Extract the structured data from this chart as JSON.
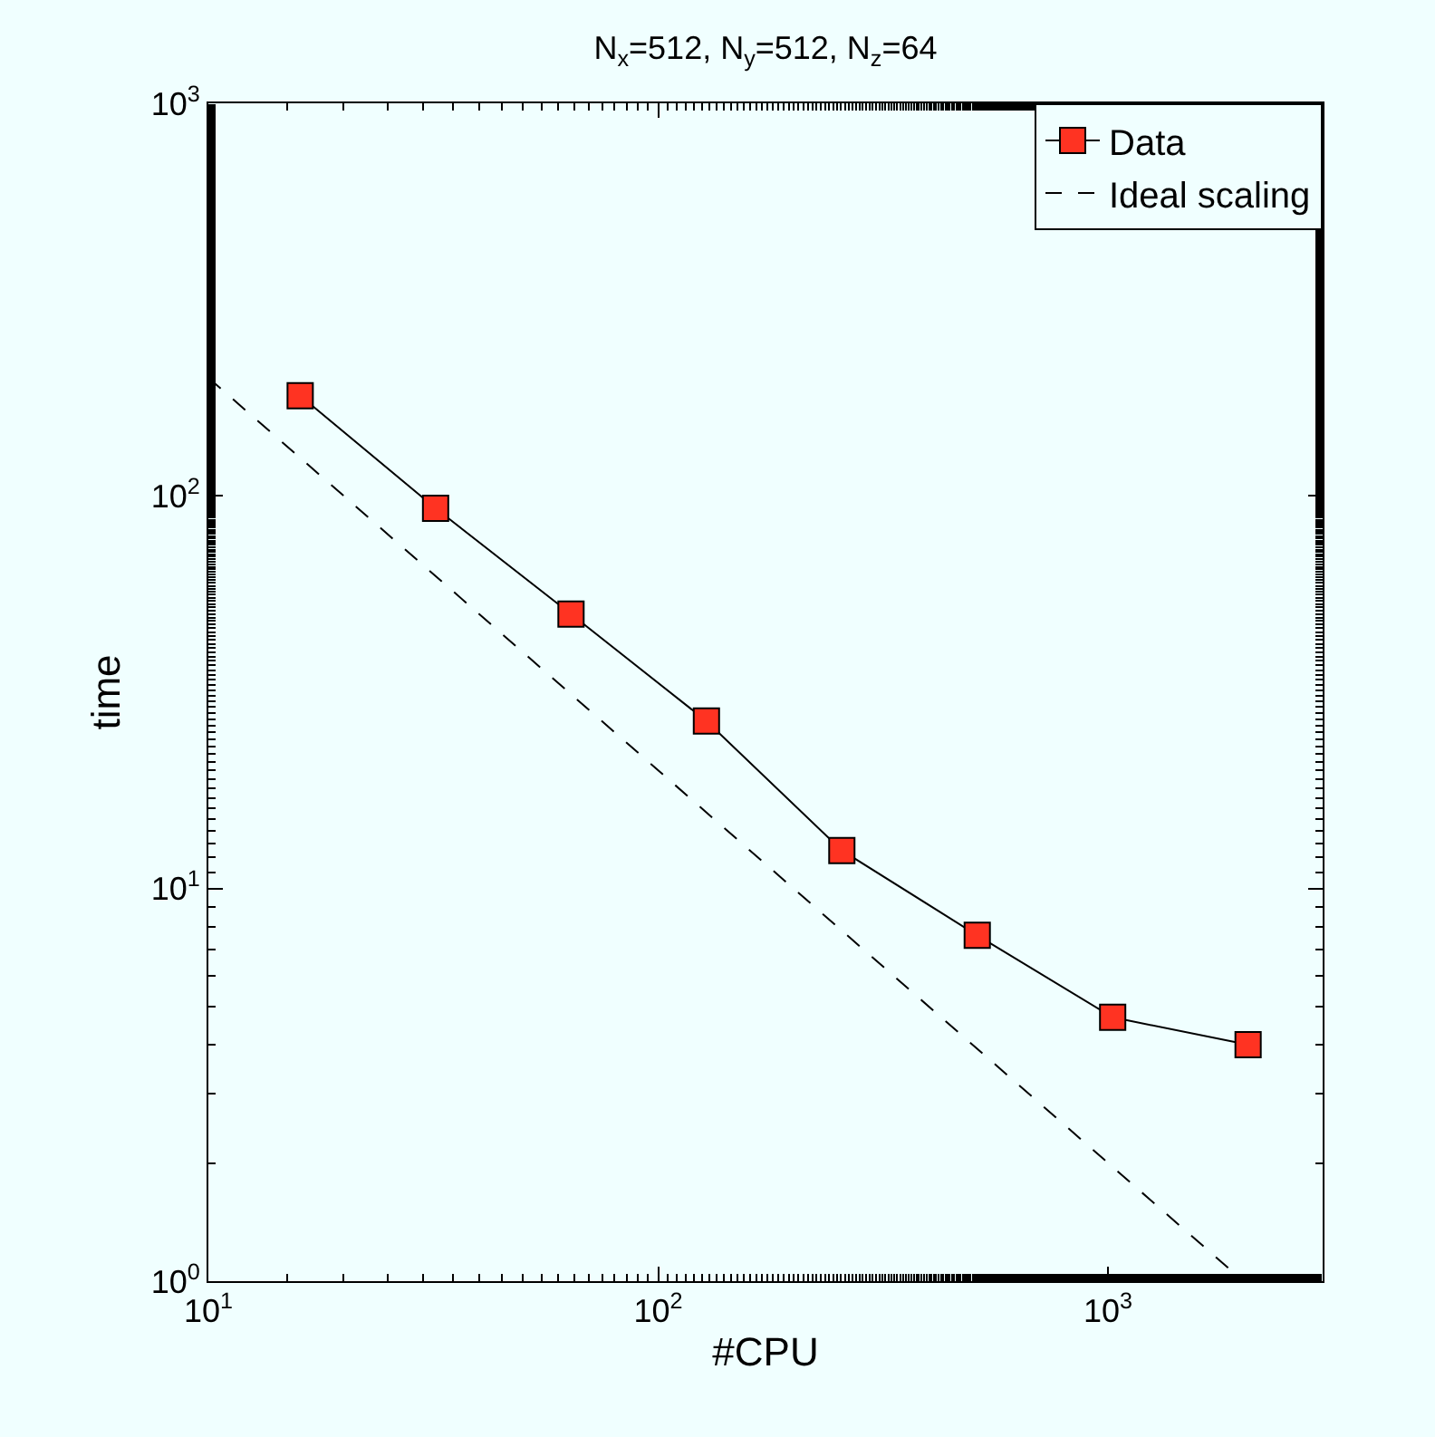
{
  "chart_data": {
    "type": "line",
    "title": "N$_{x}$=512, N$_{y}$=512, N$_{z}$=64",
    "xlabel": "#CPU",
    "ylabel": "time",
    "log": "xy",
    "grid": false,
    "legend": "top right",
    "xlim": [
      10,
      3000
    ],
    "ylim": [
      1,
      1000
    ],
    "xticks": [
      {
        "value": 10,
        "label": "10$^{1}$"
      },
      {
        "value": 100,
        "label": "10$^{2}$"
      },
      {
        "value": 1000,
        "label": "10$^{3}$"
      }
    ],
    "yticks": [
      {
        "value": 1,
        "label": "10$^{0}$"
      },
      {
        "value": 10,
        "label": "10$^{1}$"
      },
      {
        "value": 100,
        "label": "10$^{2}$"
      },
      {
        "value": 1000,
        "label": "10$^{3}$"
      }
    ],
    "series": [
      {
        "name": "Data",
        "color": "#ff3322",
        "marker": "square",
        "line_style": "solid",
        "x": [
          16,
          32,
          64,
          128,
          256,
          512,
          1024,
          2048
        ],
        "values": [
          180,
          93,
          50,
          26.7,
          12.5,
          7.6,
          4.7,
          4.0
        ]
      },
      {
        "name": "Ideal scaling",
        "color": "#000000",
        "marker": "none",
        "line_style": "dashed",
        "x": [
          10,
          2000
        ],
        "values": [
          200,
          1
        ]
      }
    ]
  }
}
